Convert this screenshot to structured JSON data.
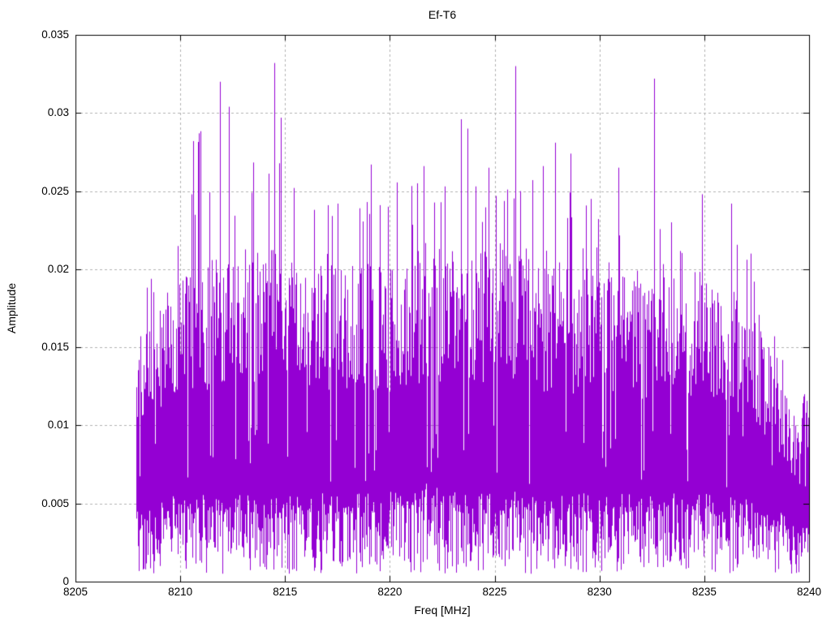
{
  "chart_data": {
    "type": "line",
    "render_style": "dense noisy amplitude spectrum drawn with vertical 1px line strokes (gnuplot-style)",
    "title": "Ef-T6",
    "xlabel": "Freq [MHz]",
    "ylabel": "Amplitude",
    "xlim": [
      8205,
      8240
    ],
    "ylim": [
      0,
      0.035
    ],
    "x_ticks": {
      "values": [
        8205,
        8210,
        8215,
        8220,
        8225,
        8230,
        8235,
        8240
      ],
      "labels": [
        "8205",
        "8210",
        "8215",
        "8220",
        "8225",
        "8230",
        "8235",
        "8240"
      ]
    },
    "y_ticks": {
      "values": [
        0,
        0.005,
        0.01,
        0.015,
        0.02,
        0.025,
        0.03,
        0.035
      ],
      "labels": [
        "0",
        "0.005",
        "0.01",
        "0.015",
        "0.02",
        "0.025",
        "0.03",
        "0.035"
      ]
    },
    "grid": true,
    "legend": null,
    "line_color": "#9400D3",
    "grid_color": "#b0b0b0",
    "border_color": "#000000",
    "signal_band": [
      8207.9,
      8240
    ],
    "noise_envelope": [
      [
        8207.9,
        0.004,
        0.011,
        0.017
      ],
      [
        8209.0,
        0.0045,
        0.0135,
        0.021
      ],
      [
        8210.0,
        0.005,
        0.015,
        0.028
      ],
      [
        8212.0,
        0.005,
        0.0155,
        0.03
      ],
      [
        8214.0,
        0.005,
        0.016,
        0.031
      ],
      [
        8216.0,
        0.005,
        0.015,
        0.024
      ],
      [
        8218.0,
        0.005,
        0.015,
        0.0245
      ],
      [
        8220.0,
        0.005,
        0.015,
        0.026
      ],
      [
        8221.8,
        0.0055,
        0.016,
        0.027
      ],
      [
        8224.0,
        0.005,
        0.0155,
        0.0265
      ],
      [
        8226.0,
        0.005,
        0.0155,
        0.027
      ],
      [
        8228.0,
        0.005,
        0.015,
        0.028
      ],
      [
        8230.0,
        0.005,
        0.0145,
        0.0235
      ],
      [
        8232.0,
        0.005,
        0.0145,
        0.0225
      ],
      [
        8234.0,
        0.005,
        0.0145,
        0.0245
      ],
      [
        8236.0,
        0.0048,
        0.014,
        0.023
      ],
      [
        8237.5,
        0.0045,
        0.0125,
        0.02
      ],
      [
        8238.5,
        0.004,
        0.01,
        0.0155
      ],
      [
        8239.5,
        0.003,
        0.0075,
        0.0145
      ],
      [
        8240.0,
        0.003,
        0.0105,
        0.0105
      ]
    ],
    "peaks": [
      [
        8210.6,
        0.0282
      ],
      [
        8210.9,
        0.0287
      ],
      [
        8211.9,
        0.032
      ],
      [
        8212.3,
        0.0304
      ],
      [
        8213.4,
        0.0249
      ],
      [
        8214.5,
        0.0332
      ],
      [
        8214.8,
        0.0297
      ],
      [
        8215.4,
        0.0252
      ],
      [
        8216.4,
        0.0238
      ],
      [
        8217.5,
        0.0242
      ],
      [
        8218.9,
        0.0243
      ],
      [
        8219.1,
        0.0267
      ],
      [
        8219.9,
        0.024
      ],
      [
        8221.3,
        0.0255
      ],
      [
        8221.6,
        0.0266
      ],
      [
        8222.6,
        0.0253
      ],
      [
        8223.4,
        0.0296
      ],
      [
        8223.7,
        0.029
      ],
      [
        8224.1,
        0.0253
      ],
      [
        8225.6,
        0.0251
      ],
      [
        8226.0,
        0.033
      ],
      [
        8226.2,
        0.025
      ],
      [
        8227.3,
        0.0266
      ],
      [
        8227.9,
        0.0281
      ],
      [
        8228.6,
        0.0274
      ],
      [
        8229.6,
        0.0245
      ],
      [
        8230.9,
        0.0265
      ],
      [
        8232.6,
        0.0322
      ],
      [
        8233.4,
        0.023
      ],
      [
        8234.9,
        0.0248
      ],
      [
        8236.3,
        0.0242
      ],
      [
        8237.2,
        0.021
      ],
      [
        8239.95,
        0.0105
      ]
    ],
    "seed": 42
  }
}
